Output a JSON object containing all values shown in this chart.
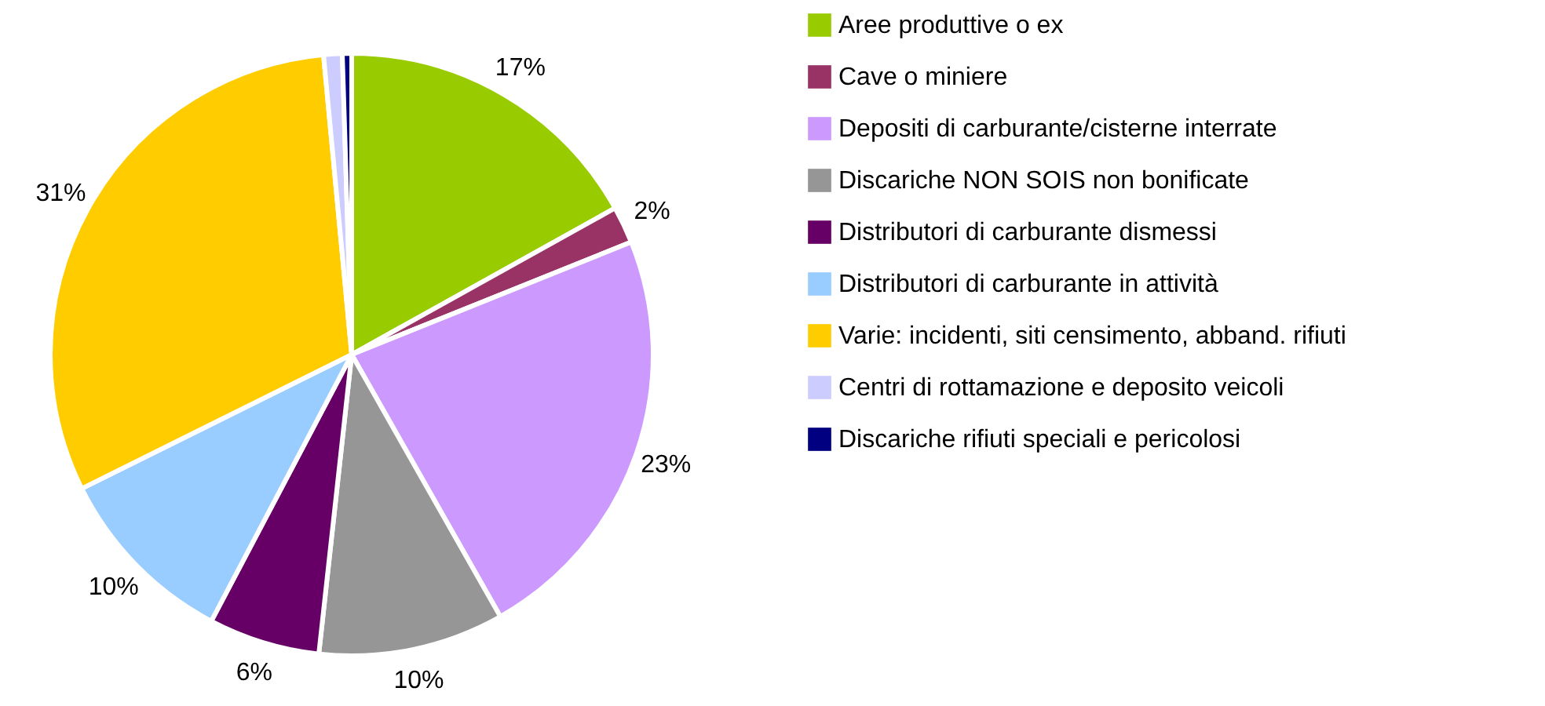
{
  "chart_data": {
    "type": "pie",
    "categories": [
      "Aree produttive o ex",
      "Cave o miniere",
      "Depositi di carburante/cisterne interrate",
      "Discariche NON SOIS non bonificate",
      "Distributori di carburante dismessi",
      "Distributori di carburante in attività",
      "Varie: incidenti, siti censimento, abband. rifiuti",
      "Centri di rottamazione e deposito veicoli",
      "Discariche rifiuti speciali e pericolosi"
    ],
    "values": [
      17,
      2,
      23,
      10,
      6,
      10,
      31,
      1,
      0.5
    ],
    "value_labels": [
      "17%",
      "2%",
      "23%",
      "10%",
      "6%",
      "10%",
      "31%",
      null,
      null
    ],
    "colors": [
      "#99cc00",
      "#993366",
      "#cc99ff",
      "#969696",
      "#660066",
      "#99ccff",
      "#ffcc00",
      "#ccccff",
      "#000080"
    ],
    "legend": "right"
  }
}
